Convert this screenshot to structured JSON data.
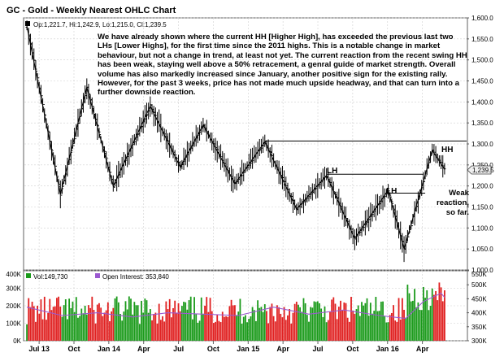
{
  "chart_data": [
    {
      "type": "ohlc",
      "title": "GC - Gold - Weekly Nearest OHLC Chart",
      "ohlc_readout": {
        "prefix": "Op:",
        "open": "1,221.7",
        "high_label": "Hi:",
        "high": "1,242.9",
        "low_label": "Lo:",
        "low": "1,215.0",
        "close_label": "Cl:",
        "close": "1,239.5"
      },
      "ylim": [
        1000,
        1600
      ],
      "y_ticks": [
        "1,600.0",
        "1,550.0",
        "1,500.0",
        "1,450.0",
        "1,400.0",
        "1,350.0",
        "1,300.0",
        "1,250.0",
        "1,200.0",
        "1,150.0",
        "1,100.0",
        "1,050.0",
        "1,000.0"
      ],
      "y_tick_values": [
        1600,
        1550,
        1500,
        1450,
        1400,
        1350,
        1300,
        1250,
        1200,
        1150,
        1100,
        1050,
        1000
      ],
      "last_price": "1,239.5",
      "last_price_value": 1239.5,
      "annotation": "We have already shown where the current HH [Higher High], has exceeded the previous last two LHs [Lower Highs], for the first time since the 2011 highs.  This is a notable change in market behaviour, but not a change in trend, at least not yet.  The current reaction from the recent swing HH has been weak, staying well above a 50% retracement, a genral guide of market strength.  Overall volume has also markedly increased since January, another positive sign for the existing rally.  However, for the past 3 weeks, price has not made much upside headway, and that can turn into a further downside reaction.",
      "labels": {
        "hh": "HH",
        "lh1": "LH",
        "lh2": "LH",
        "weak": "Weak reaction, so far."
      },
      "swing_points": [
        {
          "week": 0,
          "price": 1580
        },
        {
          "week": 19,
          "price": 1180
        },
        {
          "week": 34,
          "price": 1435
        },
        {
          "week": 49,
          "price": 1200
        },
        {
          "week": 70,
          "price": 1390
        },
        {
          "week": 87,
          "price": 1245
        },
        {
          "week": 100,
          "price": 1345
        },
        {
          "week": 118,
          "price": 1205
        },
        {
          "week": 135,
          "price": 1305
        },
        {
          "week": 153,
          "price": 1145
        },
        {
          "week": 170,
          "price": 1225
        },
        {
          "week": 186,
          "price": 1075
        },
        {
          "week": 205,
          "price": 1190
        },
        {
          "week": 214,
          "price": 1050
        },
        {
          "week": 230,
          "price": 1285
        },
        {
          "week": 237,
          "price": 1239.5
        }
      ],
      "horizontal_lines": [
        {
          "from_week": 135,
          "to_week": 255,
          "price": 1307
        },
        {
          "from_week": 170,
          "to_week": 225,
          "price": 1228
        },
        {
          "from_week": 205,
          "to_week": 226,
          "price": 1183
        }
      ]
    },
    {
      "type": "bar",
      "volume_label": "Vol:",
      "volume": "149,730",
      "oi_label": "Open Interest:",
      "open_interest": "353,840",
      "ylim_left": [
        0,
        400000
      ],
      "y_ticks_left": [
        "400K",
        "300K",
        "200K",
        "100K",
        "0K"
      ],
      "y_tick_values_left": [
        400000,
        300000,
        200000,
        100000,
        0
      ],
      "ylim_right": [
        300000,
        550000
      ],
      "y_ticks_right": [
        "550K",
        "500K",
        "450K",
        "400K",
        "350K",
        "300K"
      ],
      "y_tick_values_right": [
        550000,
        500000,
        450000,
        400000,
        350000,
        300000
      ],
      "x_ticks": [
        "Jul 13",
        "Oct",
        "Jan 14",
        "Apr",
        "Jul",
        "Oct",
        "Jan 15",
        "Apr",
        "Jul",
        "Oct",
        "Jan 16",
        "Apr"
      ],
      "x_tick_weeks": [
        13,
        26,
        39,
        52,
        65,
        78,
        91,
        104,
        117,
        130,
        143,
        156
      ],
      "open_interest_points": [
        {
          "week": 0,
          "value": 420000
        },
        {
          "week": 20,
          "value": 390000
        },
        {
          "week": 40,
          "value": 400000
        },
        {
          "week": 60,
          "value": 385000
        },
        {
          "week": 80,
          "value": 400000
        },
        {
          "week": 100,
          "value": 395000
        },
        {
          "week": 120,
          "value": 390000
        },
        {
          "week": 140,
          "value": 420000
        },
        {
          "week": 160,
          "value": 395000
        },
        {
          "week": 180,
          "value": 410000
        },
        {
          "week": 200,
          "value": 390000
        },
        {
          "week": 215,
          "value": 380000
        },
        {
          "week": 225,
          "value": 440000
        },
        {
          "week": 235,
          "value": 470000
        },
        {
          "week": 240,
          "value": 455000
        }
      ]
    }
  ],
  "colors": {
    "up_bar": "#1a9a1a",
    "down_bar": "#e02020",
    "open_interest": "#9b59d0",
    "price": "#000000",
    "panel_border": "#606060",
    "grid": "#cfcfcf"
  }
}
